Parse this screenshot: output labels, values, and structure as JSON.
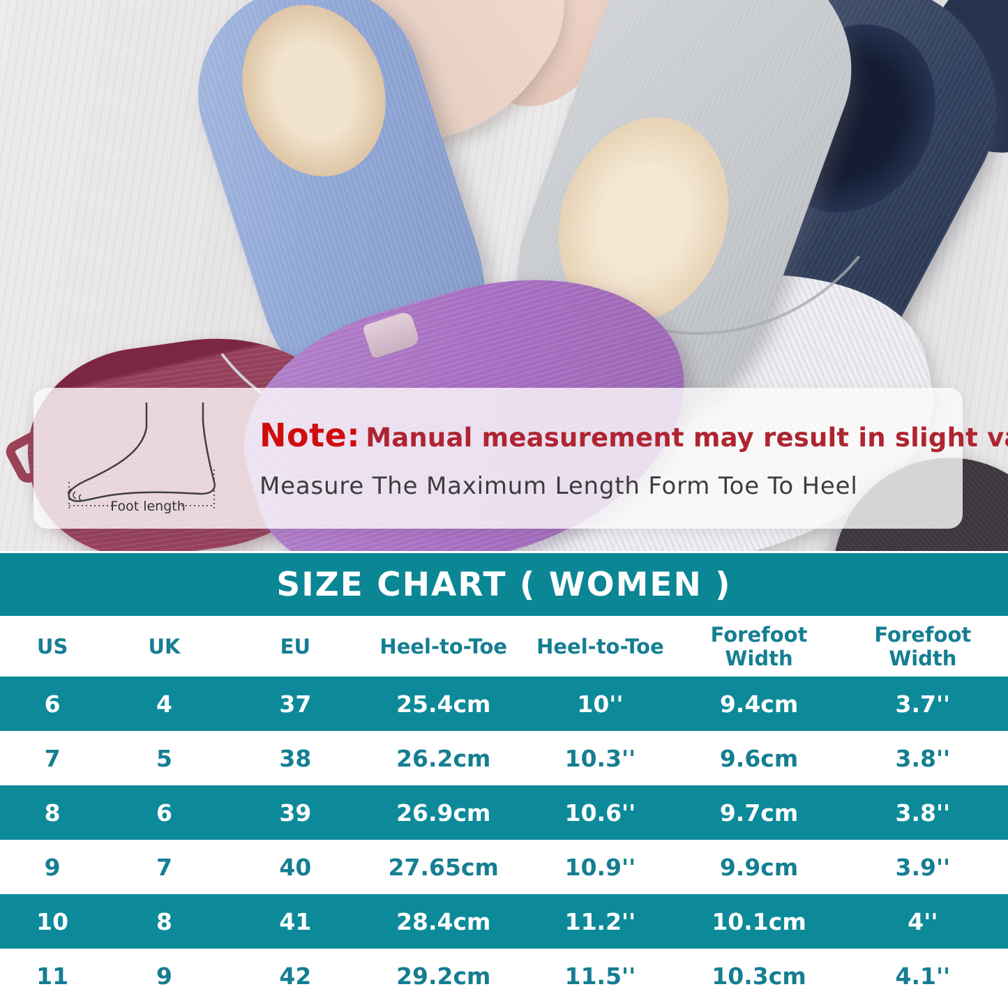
{
  "note": {
    "label": "Note:",
    "text": "Manual measurement may result in slight variations.",
    "subtext": "Measure The Maximum Length Form Toe To Heel",
    "foot_caption": "Foot length"
  },
  "chart_data": {
    "type": "table",
    "title": "SIZE CHART ( WOMEN )",
    "columns": [
      "US",
      "UK",
      "EU",
      "Heel-to-Toe",
      "Heel-to-Toe",
      "Forefoot Width",
      "Forefoot Width"
    ],
    "rows": [
      [
        "6",
        "4",
        "37",
        "25.4cm",
        "10''",
        "9.4cm",
        "3.7''"
      ],
      [
        "7",
        "5",
        "38",
        "26.2cm",
        "10.3''",
        "9.6cm",
        "3.8''"
      ],
      [
        "8",
        "6",
        "39",
        "26.9cm",
        "10.6''",
        "9.7cm",
        "3.8''"
      ],
      [
        "9",
        "7",
        "40",
        "27.65cm",
        "10.9''",
        "9.9cm",
        "3.9''"
      ],
      [
        "10",
        "8",
        "41",
        "28.4cm",
        "11.2''",
        "10.1cm",
        "4''"
      ],
      [
        "11",
        "9",
        "42",
        "29.2cm",
        "11.5''",
        "10.3cm",
        "4.1''"
      ]
    ]
  },
  "colors": {
    "teal_band": "#0b8695",
    "teal_row": "#0d8a9a",
    "teal_text": "#157e92",
    "note_red_bold": "#cf0d0d",
    "note_red": "#ae2531",
    "note_dark": "#3c3c3c"
  },
  "photo": {
    "slippers": [
      {
        "name": "light-blue-slipper",
        "color": "#8ea6d6"
      },
      {
        "name": "beige-slipper",
        "color": "#e8d0c3"
      },
      {
        "name": "gray-slipper",
        "color": "#c7cace"
      },
      {
        "name": "navy-slipper",
        "color": "#31405e"
      },
      {
        "name": "purple-slipper",
        "color": "#a76ec1"
      },
      {
        "name": "burgundy-slipper",
        "color": "#96405b"
      },
      {
        "name": "black-slipper",
        "color": "#3b373d"
      },
      {
        "name": "white-slipper",
        "color": "#edeef1"
      }
    ]
  }
}
